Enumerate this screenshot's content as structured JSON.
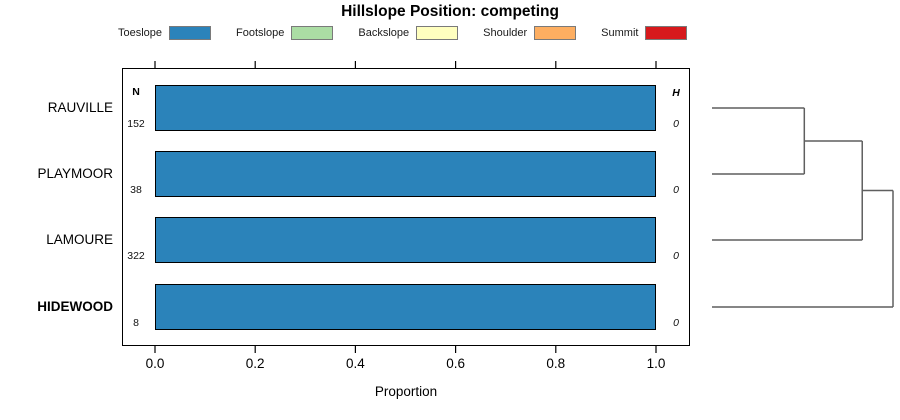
{
  "title": "Hillslope Position: competing",
  "legend": [
    {
      "label": "Toeslope",
      "color": "#2B83BA"
    },
    {
      "label": "Footslope",
      "color": "#ABDDA4"
    },
    {
      "label": "Backslope",
      "color": "#FFFFBF"
    },
    {
      "label": "Shoulder",
      "color": "#FDAE61"
    },
    {
      "label": "Summit",
      "color": "#D7191C"
    }
  ],
  "columns": {
    "n_header": "N",
    "h_header": "H"
  },
  "chart_data": {
    "type": "bar",
    "orientation": "horizontal",
    "stacked": true,
    "title": "Hillslope Position: competing",
    "xlabel": "Proportion",
    "xlim": [
      0,
      1.04
    ],
    "xtick_labels": [
      "0.0",
      "0.2",
      "0.4",
      "0.6",
      "0.8",
      "1.0"
    ],
    "xtick_values": [
      0.0,
      0.2,
      0.4,
      0.6,
      0.8,
      1.0
    ],
    "grid": false,
    "legend_position": "top",
    "categories": [
      "RAUVILLE",
      "PLAYMOOR",
      "LAMOURE",
      "HIDEWOOD"
    ],
    "emphasized_category": "HIDEWOOD",
    "series": [
      {
        "name": "Toeslope",
        "color": "#2B83BA",
        "values": [
          1.0,
          1.0,
          1.0,
          1.0
        ]
      },
      {
        "name": "Footslope",
        "color": "#ABDDA4",
        "values": [
          0,
          0,
          0,
          0
        ]
      },
      {
        "name": "Backslope",
        "color": "#FFFFBF",
        "values": [
          0,
          0,
          0,
          0
        ]
      },
      {
        "name": "Shoulder",
        "color": "#FDAE61",
        "values": [
          0,
          0,
          0,
          0
        ]
      },
      {
        "name": "Summit",
        "color": "#D7191C",
        "values": [
          0,
          0,
          0,
          0
        ]
      }
    ],
    "n_values": [
      "152",
      "38",
      "322",
      "8"
    ],
    "h_values": [
      "0",
      "0",
      "0",
      "0"
    ],
    "dendrogram": {
      "side": "right",
      "leaf_order": [
        "RAUVILLE",
        "PLAYMOOR",
        "LAMOURE",
        "HIDEWOOD"
      ],
      "merges": [
        {
          "a": "leaf:0",
          "b": "leaf:1",
          "height": 0.51
        },
        {
          "a": "merge:0",
          "b": "leaf:2",
          "height": 0.83
        },
        {
          "a": "merge:1",
          "b": "leaf:3",
          "height": 1.0
        }
      ]
    }
  }
}
